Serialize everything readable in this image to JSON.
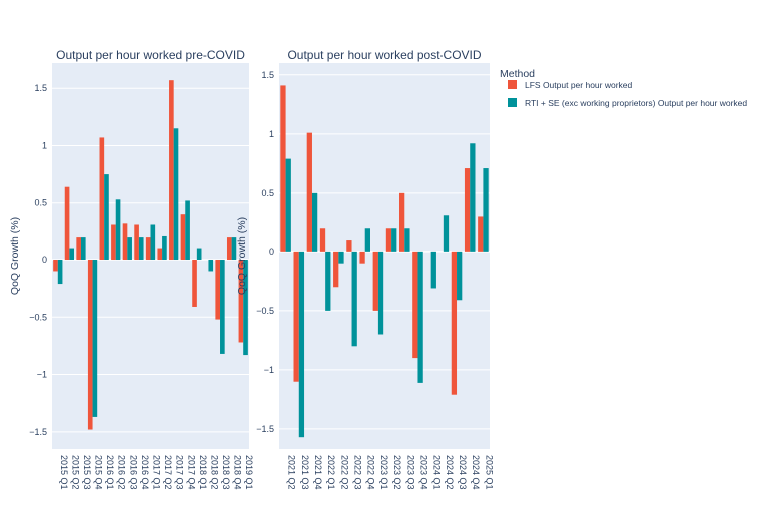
{
  "colors": {
    "plot_bg": "#e5ecf6",
    "grid": "#ffffff",
    "text": "#2a3f5f",
    "lfs": "#ef553b",
    "rti": "#00929a"
  },
  "legend": {
    "title": "Method",
    "items": [
      {
        "label": "LFS Output per hour worked",
        "color": "#ef553b"
      },
      {
        "label": "RTI + SE (exc working proprietors) Output per hour worked",
        "color": "#00929a"
      }
    ]
  },
  "chart_data": [
    {
      "type": "bar",
      "title": "Output per hour worked pre-COVID",
      "xlabel": "",
      "ylabel": "QoQ Growth (%)",
      "ylim": [
        -1.65,
        1.72
      ],
      "yticks": [
        -1.5,
        -1,
        -0.5,
        0,
        0.5,
        1,
        1.5
      ],
      "yticklabels": [
        "−1.5",
        "−1",
        "−0.5",
        "0",
        "0.5",
        "1",
        "1.5"
      ],
      "categories": [
        "2015 Q1",
        "2015 Q2",
        "2015 Q3",
        "2015 Q4",
        "2016 Q1",
        "2016 Q2",
        "2016 Q3",
        "2016 Q4",
        "2017 Q1",
        "2017 Q2",
        "2017 Q3",
        "2017 Q4",
        "2018 Q1",
        "2018 Q2",
        "2018 Q3",
        "2018 Q4",
        "2019 Q1"
      ],
      "series": [
        {
          "name": "LFS Output per hour worked",
          "values": [
            -0.1,
            0.64,
            0.2,
            -1.48,
            1.07,
            0.31,
            0.32,
            0.31,
            0.2,
            0.1,
            1.57,
            0.4,
            -0.41,
            0.0,
            -0.52,
            0.2,
            -0.72
          ]
        },
        {
          "name": "RTI + SE (exc working proprietors) Output per hour worked",
          "values": [
            -0.21,
            0.1,
            0.2,
            -1.37,
            0.75,
            0.53,
            0.2,
            0.2,
            0.31,
            0.21,
            1.15,
            0.52,
            0.1,
            -0.1,
            -0.82,
            0.2,
            -0.83
          ]
        }
      ]
    },
    {
      "type": "bar",
      "title": "Output per hour worked post-COVID",
      "xlabel": "",
      "ylabel": "QoQ Growth (%)",
      "ylim": [
        -1.67,
        1.6
      ],
      "yticks": [
        -1.5,
        -1,
        -0.5,
        0,
        0.5,
        1,
        1.5
      ],
      "yticklabels": [
        "−1.5",
        "−1",
        "−0.5",
        "0",
        "0.5",
        "1",
        "1.5"
      ],
      "categories": [
        "2021 Q2",
        "2021 Q3",
        "2021 Q4",
        "2022 Q1",
        "2022 Q2",
        "2022 Q3",
        "2022 Q4",
        "2023 Q1",
        "2023 Q2",
        "2023 Q3",
        "2023 Q4",
        "2024 Q1",
        "2024 Q2",
        "2024 Q3",
        "2024 Q4",
        "2025 Q1"
      ],
      "series": [
        {
          "name": "LFS Output per hour worked",
          "values": [
            1.41,
            -1.1,
            1.01,
            0.2,
            -0.3,
            0.1,
            -0.1,
            -0.5,
            0.2,
            0.5,
            -0.9,
            0.0,
            0.0,
            -1.21,
            0.71,
            0.3
          ]
        },
        {
          "name": "RTI + SE (exc working proprietors) Output per hour worked",
          "values": [
            0.79,
            -1.57,
            0.5,
            -0.5,
            -0.1,
            -0.8,
            0.2,
            -0.7,
            0.2,
            0.2,
            -1.11,
            -0.31,
            0.31,
            -0.41,
            0.92,
            0.71
          ]
        }
      ]
    }
  ]
}
